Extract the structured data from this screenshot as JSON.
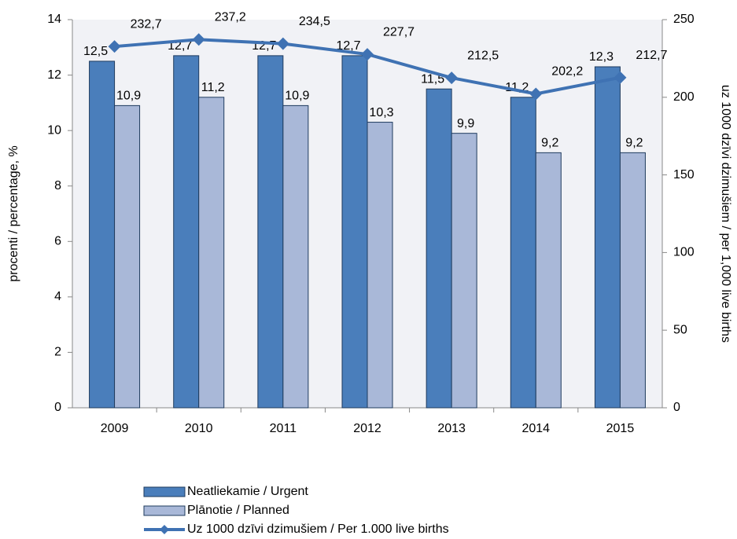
{
  "chart_data": {
    "type": "bar",
    "categories": [
      "2009",
      "2010",
      "2011",
      "2012",
      "2013",
      "2014",
      "2015"
    ],
    "series": [
      {
        "name": "Neatliekamie / Urgent",
        "type": "bar",
        "color": "#4a7ebb",
        "values": [
          12.5,
          12.7,
          12.7,
          12.7,
          11.5,
          11.2,
          12.3
        ],
        "value_labels": [
          "12,5",
          "12,7",
          "12,7",
          "12,7",
          "11,5",
          "11,2",
          "12,3"
        ]
      },
      {
        "name": "Plānotie / Planned",
        "type": "bar",
        "color": "#a9b8d8",
        "values": [
          10.9,
          11.2,
          10.9,
          10.3,
          9.9,
          9.2,
          9.2
        ],
        "value_labels": [
          "10,9",
          "11,2",
          "10,9",
          "10,3",
          "9,9",
          "9,2",
          "9,2"
        ]
      },
      {
        "name": "Uz 1000 dzīvi dzimušiem / Per 1.000 live births",
        "type": "line",
        "axis": "y2",
        "color": "#3f72b3",
        "values": [
          232.7,
          237.2,
          234.5,
          227.7,
          212.5,
          202.2,
          212.7
        ],
        "value_labels": [
          "232,7",
          "237,2",
          "234,5",
          "227,7",
          "212,5",
          "202,2",
          "212,7"
        ]
      }
    ],
    "ylabel": "procenti / percentage, %",
    "y2label": "uz 1000 dzīvi dzimušiem / per 1,000 live births",
    "ylim": [
      0,
      14
    ],
    "yticks": [
      0,
      2,
      4,
      6,
      8,
      10,
      12,
      14
    ],
    "y2lim": [
      0,
      250
    ],
    "y2ticks": [
      0,
      50,
      100,
      150,
      200,
      250
    ],
    "grid": false,
    "legend": "bottom"
  }
}
